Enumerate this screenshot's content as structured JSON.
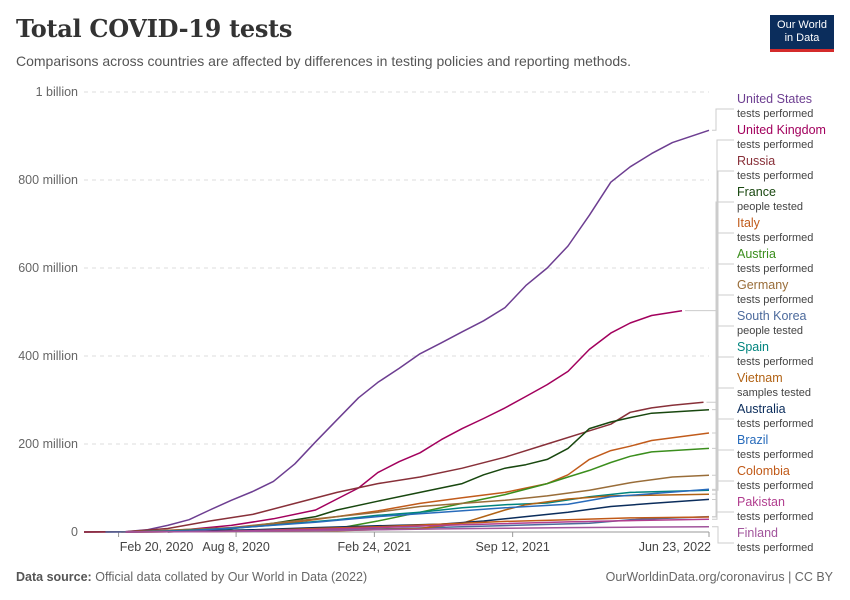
{
  "header": {
    "title": "Total COVID-19 tests",
    "subtitle": "Comparisons across countries are affected by differences in testing policies and reporting methods.",
    "logo_line1": "Our World",
    "logo_line2": "in Data"
  },
  "footer": {
    "source_label": "Data source:",
    "source_text": "Official data collated by Our World in Data (2022)",
    "right_text": "OurWorldinData.org/coronavirus | CC BY"
  },
  "chart_data": {
    "type": "line",
    "title": "Total COVID-19 tests",
    "ylim": [
      0,
      1000000000
    ],
    "y_ticks": [
      {
        "value": 0,
        "label": "0"
      },
      {
        "value": 200000000,
        "label": "200 million"
      },
      {
        "value": 400000000,
        "label": "400 million"
      },
      {
        "value": 600000000,
        "label": "600 million"
      },
      {
        "value": 800000000,
        "label": "800 million"
      },
      {
        "value": 1000000000,
        "label": "1 billion"
      }
    ],
    "xlim": [
      "2020-01-01",
      "2022-06-23"
    ],
    "x_ticks": [
      {
        "date": "2020-02-20",
        "label": "Feb 20, 2020"
      },
      {
        "date": "2020-08-08",
        "label": "Aug 8, 2020"
      },
      {
        "date": "2021-02-24",
        "label": "Feb 24, 2021"
      },
      {
        "date": "2021-09-12",
        "label": "Sep 12, 2021"
      },
      {
        "date": "2022-06-23",
        "label": "Jun 23, 2022"
      }
    ],
    "grid": true,
    "legend_placement": "right",
    "series": [
      {
        "name": "United States",
        "metric": "tests performed",
        "color": "#6d3e91",
        "points": [
          [
            "2020-01-01",
            0
          ],
          [
            "2020-03-01",
            1000000
          ],
          [
            "2020-04-01",
            5000000
          ],
          [
            "2020-05-01",
            15000000
          ],
          [
            "2020-06-01",
            28000000
          ],
          [
            "2020-07-01",
            50000000
          ],
          [
            "2020-08-01",
            72000000
          ],
          [
            "2020-09-01",
            92000000
          ],
          [
            "2020-10-01",
            115000000
          ],
          [
            "2020-11-01",
            155000000
          ],
          [
            "2020-12-01",
            205000000
          ],
          [
            "2021-01-01",
            255000000
          ],
          [
            "2021-02-01",
            305000000
          ],
          [
            "2021-03-01",
            340000000
          ],
          [
            "2021-04-01",
            372000000
          ],
          [
            "2021-05-01",
            405000000
          ],
          [
            "2021-06-01",
            430000000
          ],
          [
            "2021-07-01",
            455000000
          ],
          [
            "2021-08-01",
            480000000
          ],
          [
            "2021-09-01",
            510000000
          ],
          [
            "2021-10-01",
            560000000
          ],
          [
            "2021-11-01",
            600000000
          ],
          [
            "2021-12-01",
            650000000
          ],
          [
            "2022-01-01",
            720000000
          ],
          [
            "2022-02-01",
            795000000
          ],
          [
            "2022-03-01",
            830000000
          ],
          [
            "2022-04-01",
            860000000
          ],
          [
            "2022-05-01",
            885000000
          ],
          [
            "2022-06-23",
            913000000
          ]
        ]
      },
      {
        "name": "United Kingdom",
        "metric": "tests performed",
        "color": "#a2005d",
        "points": [
          [
            "2020-01-01",
            0
          ],
          [
            "2020-04-01",
            500000
          ],
          [
            "2020-06-01",
            6000000
          ],
          [
            "2020-08-01",
            15000000
          ],
          [
            "2020-10-01",
            30000000
          ],
          [
            "2020-12-01",
            50000000
          ],
          [
            "2021-01-01",
            75000000
          ],
          [
            "2021-02-01",
            100000000
          ],
          [
            "2021-03-01",
            135000000
          ],
          [
            "2021-04-01",
            160000000
          ],
          [
            "2021-05-01",
            180000000
          ],
          [
            "2021-06-01",
            210000000
          ],
          [
            "2021-07-01",
            235000000
          ],
          [
            "2021-08-01",
            258000000
          ],
          [
            "2021-09-01",
            282000000
          ],
          [
            "2021-10-01",
            308000000
          ],
          [
            "2021-11-01",
            335000000
          ],
          [
            "2021-12-01",
            365000000
          ],
          [
            "2022-01-01",
            415000000
          ],
          [
            "2022-02-01",
            452000000
          ],
          [
            "2022-03-01",
            475000000
          ],
          [
            "2022-04-01",
            492000000
          ],
          [
            "2022-05-15",
            503000000
          ]
        ]
      },
      {
        "name": "Russia",
        "metric": "tests performed",
        "color": "#883039",
        "points": [
          [
            "2020-01-01",
            0
          ],
          [
            "2020-03-01",
            500000
          ],
          [
            "2020-05-01",
            8000000
          ],
          [
            "2020-07-01",
            25000000
          ],
          [
            "2020-09-01",
            40000000
          ],
          [
            "2020-11-01",
            65000000
          ],
          [
            "2021-01-01",
            90000000
          ],
          [
            "2021-03-01",
            110000000
          ],
          [
            "2021-05-01",
            125000000
          ],
          [
            "2021-07-01",
            145000000
          ],
          [
            "2021-09-01",
            170000000
          ],
          [
            "2021-11-01",
            200000000
          ],
          [
            "2022-01-01",
            230000000
          ],
          [
            "2022-02-01",
            245000000
          ],
          [
            "2022-03-01",
            272000000
          ],
          [
            "2022-04-01",
            282000000
          ],
          [
            "2022-05-01",
            288000000
          ],
          [
            "2022-06-15",
            295000000
          ]
        ]
      },
      {
        "name": "France",
        "metric": "people tested",
        "color": "#18470f",
        "points": [
          [
            "2020-05-01",
            0
          ],
          [
            "2020-06-01",
            2000000
          ],
          [
            "2020-08-01",
            8000000
          ],
          [
            "2020-10-01",
            20000000
          ],
          [
            "2020-12-01",
            35000000
          ],
          [
            "2021-01-01",
            50000000
          ],
          [
            "2021-03-01",
            70000000
          ],
          [
            "2021-05-01",
            90000000
          ],
          [
            "2021-07-01",
            110000000
          ],
          [
            "2021-08-01",
            130000000
          ],
          [
            "2021-09-01",
            145000000
          ],
          [
            "2021-10-01",
            153000000
          ],
          [
            "2021-11-01",
            165000000
          ],
          [
            "2021-12-01",
            190000000
          ],
          [
            "2022-01-01",
            235000000
          ],
          [
            "2022-02-01",
            250000000
          ],
          [
            "2022-03-01",
            260000000
          ],
          [
            "2022-04-01",
            270000000
          ],
          [
            "2022-06-23",
            278000000
          ]
        ]
      },
      {
        "name": "Italy",
        "metric": "tests performed",
        "color": "#c15b1b",
        "points": [
          [
            "2020-02-24",
            0
          ],
          [
            "2020-05-01",
            2000000
          ],
          [
            "2020-08-01",
            8000000
          ],
          [
            "2020-11-01",
            22000000
          ],
          [
            "2021-01-01",
            35000000
          ],
          [
            "2021-03-01",
            48000000
          ],
          [
            "2021-05-01",
            65000000
          ],
          [
            "2021-07-01",
            78000000
          ],
          [
            "2021-09-01",
            90000000
          ],
          [
            "2021-11-01",
            110000000
          ],
          [
            "2021-12-01",
            130000000
          ],
          [
            "2022-01-01",
            165000000
          ],
          [
            "2022-02-01",
            185000000
          ],
          [
            "2022-03-01",
            195000000
          ],
          [
            "2022-04-01",
            208000000
          ],
          [
            "2022-06-23",
            225000000
          ]
        ]
      },
      {
        "name": "Austria",
        "metric": "tests performed",
        "color": "#3b8e1d",
        "points": [
          [
            "2020-03-01",
            0
          ],
          [
            "2020-06-01",
            1000000
          ],
          [
            "2020-10-01",
            3000000
          ],
          [
            "2021-01-01",
            8000000
          ],
          [
            "2021-03-01",
            25000000
          ],
          [
            "2021-05-01",
            45000000
          ],
          [
            "2021-07-01",
            65000000
          ],
          [
            "2021-09-01",
            85000000
          ],
          [
            "2021-11-01",
            110000000
          ],
          [
            "2021-12-01",
            125000000
          ],
          [
            "2022-01-01",
            140000000
          ],
          [
            "2022-02-01",
            158000000
          ],
          [
            "2022-03-01",
            172000000
          ],
          [
            "2022-04-01",
            182000000
          ],
          [
            "2022-06-23",
            190000000
          ]
        ]
      },
      {
        "name": "Germany",
        "metric": "tests performed",
        "color": "#996d39",
        "points": [
          [
            "2020-03-01",
            0
          ],
          [
            "2020-05-01",
            4000000
          ],
          [
            "2020-08-01",
            10000000
          ],
          [
            "2020-11-01",
            25000000
          ],
          [
            "2021-01-01",
            35000000
          ],
          [
            "2021-03-01",
            45000000
          ],
          [
            "2021-05-01",
            58000000
          ],
          [
            "2021-07-01",
            65000000
          ],
          [
            "2021-09-01",
            72000000
          ],
          [
            "2021-11-01",
            82000000
          ],
          [
            "2022-01-01",
            95000000
          ],
          [
            "2022-03-01",
            112000000
          ],
          [
            "2022-05-01",
            125000000
          ],
          [
            "2022-06-23",
            129000000
          ]
        ]
      },
      {
        "name": "South Korea",
        "metric": "people tested",
        "color": "#4c6a9c",
        "points": [
          [
            "2020-02-01",
            0
          ],
          [
            "2020-06-01",
            1000000
          ],
          [
            "2020-10-01",
            2500000
          ],
          [
            "2021-01-01",
            5000000
          ],
          [
            "2021-04-01",
            8000000
          ],
          [
            "2021-07-01",
            12000000
          ],
          [
            "2021-10-01",
            16000000
          ],
          [
            "2022-01-01",
            20000000
          ],
          [
            "2022-03-01",
            28000000
          ],
          [
            "2022-06-23",
            35000000
          ]
        ]
      },
      {
        "name": "Spain",
        "metric": "tests performed",
        "color": "#00847e",
        "points": [
          [
            "2020-03-01",
            0
          ],
          [
            "2020-05-01",
            2000000
          ],
          [
            "2020-08-01",
            8000000
          ],
          [
            "2020-11-01",
            20000000
          ],
          [
            "2021-01-01",
            28000000
          ],
          [
            "2021-03-01",
            38000000
          ],
          [
            "2021-05-01",
            45000000
          ],
          [
            "2021-07-01",
            55000000
          ],
          [
            "2021-09-01",
            62000000
          ],
          [
            "2021-11-01",
            66000000
          ],
          [
            "2022-01-01",
            80000000
          ],
          [
            "2022-03-01",
            90000000
          ],
          [
            "2022-06-23",
            95000000
          ]
        ]
      },
      {
        "name": "Vietnam",
        "metric": "samples tested",
        "color": "#b16214",
        "points": [
          [
            "2020-03-01",
            0
          ],
          [
            "2021-01-01",
            3000000
          ],
          [
            "2021-05-01",
            8000000
          ],
          [
            "2021-07-01",
            20000000
          ],
          [
            "2021-08-01",
            35000000
          ],
          [
            "2021-09-01",
            50000000
          ],
          [
            "2021-10-01",
            62000000
          ],
          [
            "2021-12-01",
            75000000
          ],
          [
            "2022-02-01",
            82000000
          ],
          [
            "2022-06-23",
            86000000
          ]
        ]
      },
      {
        "name": "Australia",
        "metric": "tests performed",
        "color": "#0b2d5c",
        "points": [
          [
            "2020-03-01",
            0
          ],
          [
            "2020-06-01",
            2000000
          ],
          [
            "2020-09-01",
            5000000
          ],
          [
            "2020-12-01",
            10000000
          ],
          [
            "2021-03-01",
            14000000
          ],
          [
            "2021-06-01",
            18000000
          ],
          [
            "2021-08-01",
            25000000
          ],
          [
            "2021-10-01",
            35000000
          ],
          [
            "2021-12-01",
            45000000
          ],
          [
            "2022-02-01",
            58000000
          ],
          [
            "2022-04-01",
            65000000
          ],
          [
            "2022-06-23",
            74000000
          ]
        ]
      },
      {
        "name": "Brazil",
        "metric": "tests performed",
        "color": "#286bbb",
        "points": [
          [
            "2020-03-01",
            0
          ],
          [
            "2020-06-01",
            3000000
          ],
          [
            "2020-09-01",
            12000000
          ],
          [
            "2020-12-01",
            22000000
          ],
          [
            "2021-03-01",
            35000000
          ],
          [
            "2021-06-01",
            45000000
          ],
          [
            "2021-09-01",
            55000000
          ],
          [
            "2021-12-01",
            63000000
          ],
          [
            "2022-02-01",
            80000000
          ],
          [
            "2022-06-23",
            97000000
          ]
        ]
      },
      {
        "name": "Colombia",
        "metric": "tests performed",
        "color": "#c05917",
        "points": [
          [
            "2020-03-01",
            0
          ],
          [
            "2020-06-01",
            1000000
          ],
          [
            "2020-09-01",
            3000000
          ],
          [
            "2020-12-01",
            8000000
          ],
          [
            "2021-03-01",
            12000000
          ],
          [
            "2021-06-01",
            18000000
          ],
          [
            "2021-09-01",
            24000000
          ],
          [
            "2021-12-01",
            28000000
          ],
          [
            "2022-03-01",
            32000000
          ],
          [
            "2022-06-23",
            34000000
          ]
        ]
      },
      {
        "name": "Pakistan",
        "metric": "tests performed",
        "color": "#b13e8f",
        "points": [
          [
            "2020-03-01",
            0
          ],
          [
            "2020-06-01",
            1000000
          ],
          [
            "2020-09-01",
            3000000
          ],
          [
            "2020-12-01",
            6000000
          ],
          [
            "2021-03-01",
            10000000
          ],
          [
            "2021-06-01",
            15000000
          ],
          [
            "2021-09-01",
            19000000
          ],
          [
            "2021-12-01",
            23000000
          ],
          [
            "2022-03-01",
            26000000
          ],
          [
            "2022-06-23",
            29000000
          ]
        ]
      },
      {
        "name": "Finland",
        "metric": "tests performed",
        "color": "#a2559c",
        "points": [
          [
            "2020-03-01",
            0
          ],
          [
            "2020-06-01",
            500000
          ],
          [
            "2020-09-01",
            1500000
          ],
          [
            "2020-12-01",
            3000000
          ],
          [
            "2021-03-01",
            5000000
          ],
          [
            "2021-06-01",
            7000000
          ],
          [
            "2021-09-01",
            8500000
          ],
          [
            "2021-12-01",
            10000000
          ],
          [
            "2022-03-01",
            11000000
          ],
          [
            "2022-06-23",
            11800000
          ]
        ]
      }
    ]
  }
}
